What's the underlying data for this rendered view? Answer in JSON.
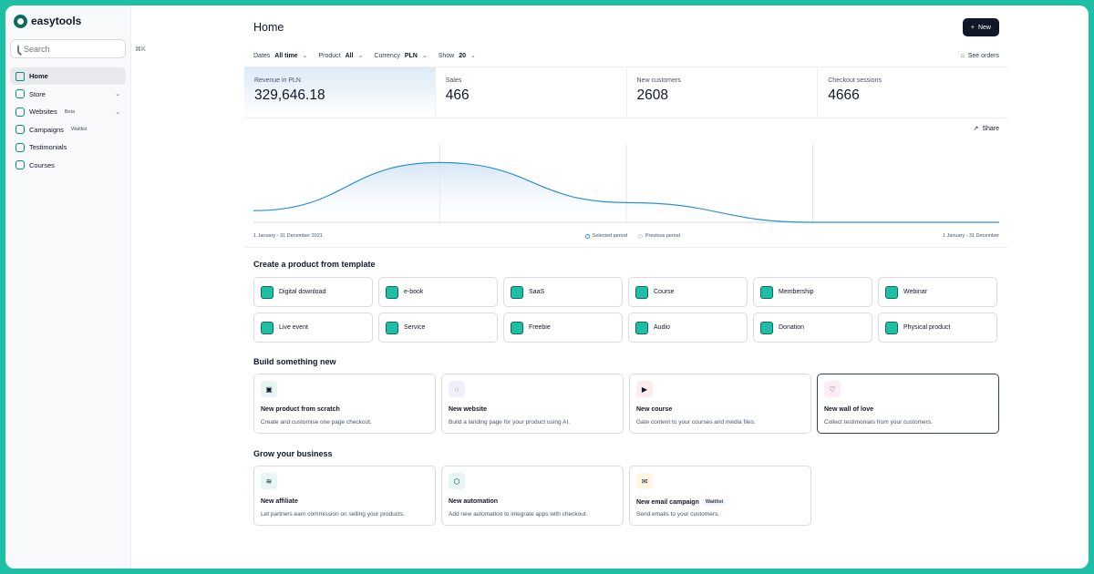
{
  "app": {
    "name": "easytools"
  },
  "search": {
    "placeholder": "Search",
    "shortcut": "⌘K"
  },
  "sidebar": {
    "items": [
      {
        "label": "Home",
        "icon": "home-icon",
        "active": true
      },
      {
        "label": "Store",
        "icon": "store-icon",
        "chevron": true
      },
      {
        "label": "Websites",
        "tag": "Beta",
        "icon": "website-icon",
        "chevron": true
      },
      {
        "label": "Campaigns",
        "tag": "Waitlist",
        "icon": "campaign-icon"
      },
      {
        "label": "Testimonials",
        "icon": "heart-icon"
      },
      {
        "label": "Courses",
        "icon": "course-icon"
      }
    ]
  },
  "header": {
    "title": "Home",
    "new_label": "New"
  },
  "filters": {
    "dates_label": "Dates",
    "dates_value": "All time",
    "product_label": "Product",
    "product_value": "All",
    "currency_label": "Currency",
    "currency_value": "PLN",
    "show_label": "Show",
    "show_value": "20",
    "see_orders": "See orders"
  },
  "stats": [
    {
      "label": "Revenue in PLN",
      "value": "329,646.18"
    },
    {
      "label": "Sales",
      "value": "466"
    },
    {
      "label": "New customers",
      "value": "2608"
    },
    {
      "label": "Checkout sessions",
      "value": "4666"
    }
  ],
  "chart": {
    "share_label": "Share",
    "period_start_label": "1 January - 31 December 2021",
    "period_end_label": "1 January - 31 December",
    "legend_selected": "Selected period",
    "legend_previous": "Previous period",
    "accent": "#2f8fd0"
  },
  "chart_data": {
    "type": "area",
    "x": [
      0,
      1,
      2,
      3,
      4
    ],
    "series": [
      {
        "values": [
          0.16,
          0.82,
          0.27,
          0.0,
          0.0
        ]
      }
    ],
    "grid": true
  },
  "templates": {
    "title": "Create a product from template",
    "items": [
      {
        "label": "Digital download",
        "icon": "download-icon"
      },
      {
        "label": "e-book",
        "icon": "ebook-icon"
      },
      {
        "label": "SaaS",
        "icon": "saas-icon"
      },
      {
        "label": "Course",
        "icon": "course-icon"
      },
      {
        "label": "Membership",
        "icon": "membership-icon"
      },
      {
        "label": "Webinar",
        "icon": "webinar-icon"
      },
      {
        "label": "Live event",
        "icon": "ticket-icon"
      },
      {
        "label": "Service",
        "icon": "service-icon"
      },
      {
        "label": "Freebie",
        "icon": "free-icon"
      },
      {
        "label": "Audio",
        "icon": "audio-icon"
      },
      {
        "label": "Donation",
        "icon": "donation-icon"
      },
      {
        "label": "Physical product",
        "icon": "box-icon"
      }
    ]
  },
  "build": {
    "title": "Build something new",
    "cards": [
      {
        "title": "New product from scratch",
        "desc": "Create and customise one page checkout.",
        "icon": "bag-icon",
        "color": "#e6f6f2",
        "glyph": "▣"
      },
      {
        "title": "New website",
        "desc": "Build a landing page for your product using AI.",
        "icon": "globe-icon",
        "color": "#eef0fb",
        "glyph": "◌"
      },
      {
        "title": "New course",
        "desc": "Gate content to your courses and media files.",
        "icon": "play-icon",
        "color": "#fdecee",
        "glyph": "▶"
      },
      {
        "title": "New wall of love",
        "desc": "Collect testimonials from your customers.",
        "icon": "heart-icon",
        "color": "#fcecf5",
        "glyph": "♡"
      }
    ]
  },
  "grow": {
    "title": "Grow your business",
    "cards": [
      {
        "title": "New affiliate",
        "desc": "Let partners earn commission on selling your products.",
        "icon": "handshake-icon",
        "color": "#e6f6f2",
        "glyph": "≋"
      },
      {
        "title": "New automation",
        "desc": "Add new automation to integrate apps with checkout.",
        "icon": "automation-icon",
        "color": "#e6f6f2",
        "glyph": "⬡"
      },
      {
        "title": "New email campaign",
        "badge": "Waitlist",
        "desc": "Send emails to your customers.",
        "icon": "megaphone-icon",
        "color": "#fdf6e3",
        "glyph": "✉"
      }
    ]
  }
}
